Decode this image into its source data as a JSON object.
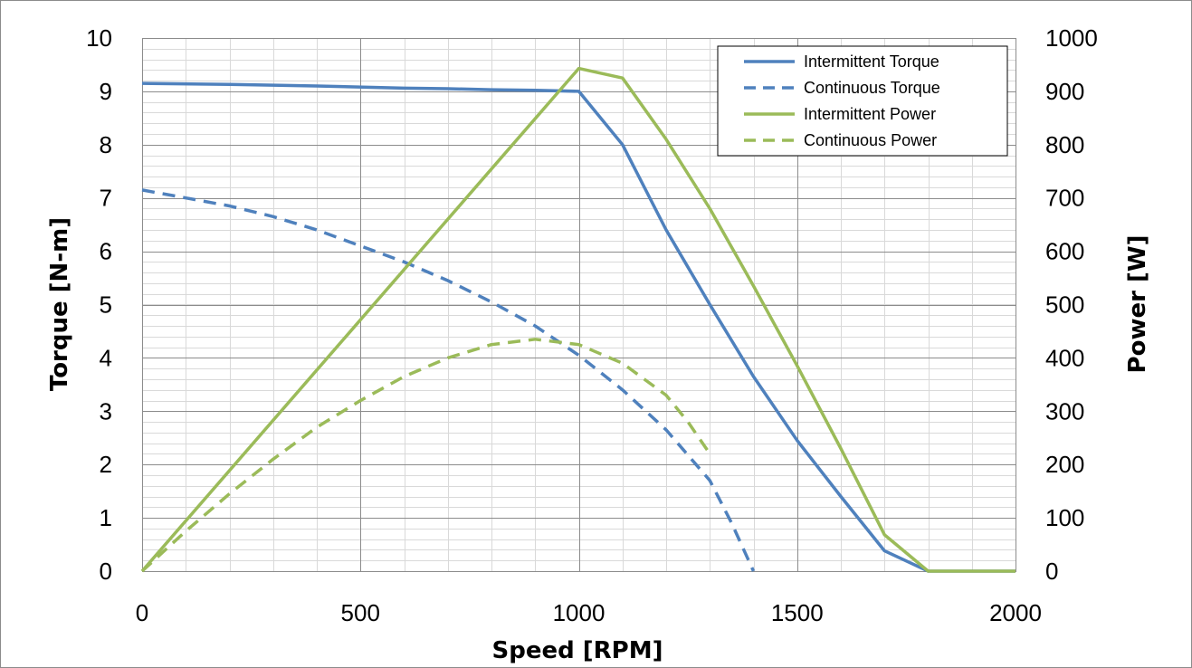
{
  "chart_data": {
    "type": "line",
    "xlabel": "Speed [RPM]",
    "ylabel_left": "Torque  [N-m]",
    "ylabel_right": "Power [W]",
    "xlim": [
      0,
      2000
    ],
    "ylim_left": [
      0,
      10
    ],
    "ylim_right": [
      0,
      1000
    ],
    "x_ticks": [
      0,
      500,
      1000,
      1500,
      2000
    ],
    "y_left_ticks": [
      0,
      1,
      2,
      3,
      4,
      5,
      6,
      7,
      8,
      9,
      10
    ],
    "y_right_ticks": [
      0,
      100,
      200,
      300,
      400,
      500,
      600,
      700,
      800,
      900,
      1000
    ],
    "x_minor_step": 100,
    "y_minor_step": 0.2,
    "grid": true,
    "legend_position": "top-right",
    "series": [
      {
        "name": "Intermittent Torque",
        "axis": "left",
        "style": "solid",
        "color": "#4f81bd",
        "x": [
          0,
          200,
          400,
          600,
          700,
          800,
          900,
          1000,
          1100,
          1200,
          1300,
          1400,
          1500,
          1600,
          1700,
          1800,
          2000
        ],
        "y": [
          9.15,
          9.13,
          9.1,
          9.06,
          9.05,
          9.03,
          9.02,
          9.0,
          8.0,
          6.4,
          5.0,
          3.65,
          2.45,
          1.4,
          0.38,
          0.0,
          0.0
        ]
      },
      {
        "name": "Continuous Torque",
        "axis": "left",
        "style": "dashed",
        "color": "#4f81bd",
        "x": [
          0,
          100,
          200,
          300,
          400,
          500,
          600,
          700,
          800,
          900,
          1000,
          1100,
          1200,
          1300,
          1350,
          1400
        ],
        "y": [
          7.15,
          7.0,
          6.85,
          6.65,
          6.4,
          6.1,
          5.8,
          5.45,
          5.05,
          4.6,
          4.05,
          3.4,
          2.65,
          1.7,
          0.9,
          0.0
        ]
      },
      {
        "name": "Intermittent Power",
        "axis": "right",
        "style": "solid",
        "color": "#9bbb59",
        "x": [
          0,
          1000,
          1100,
          1200,
          1300,
          1400,
          1500,
          1600,
          1700,
          1800,
          2000
        ],
        "y": [
          0,
          943,
          925,
          810,
          680,
          535,
          385,
          230,
          68,
          0,
          0
        ]
      },
      {
        "name": "Continuous Power",
        "axis": "right",
        "style": "dashed",
        "color": "#9bbb59",
        "x": [
          0,
          100,
          200,
          300,
          400,
          500,
          600,
          700,
          800,
          900,
          1000,
          1100,
          1200,
          1250,
          1300
        ],
        "y": [
          0,
          75,
          145,
          210,
          270,
          320,
          365,
          400,
          425,
          435,
          425,
          390,
          330,
          280,
          220
        ]
      }
    ]
  }
}
